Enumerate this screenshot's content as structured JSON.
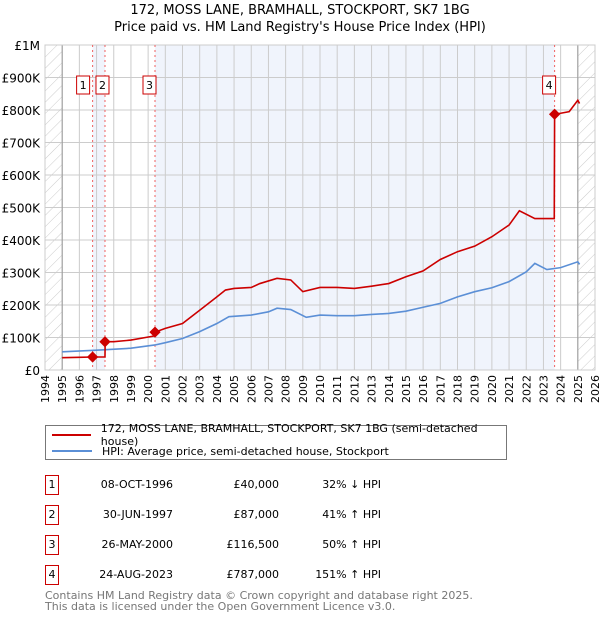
{
  "chart_data": {
    "type": "line",
    "title": "172, MOSS LANE, BRAMHALL, STOCKPORT, SK7 1BG",
    "subtitle": "Price paid vs. HM Land Registry's House Price Index (HPI)",
    "xlim": [
      1994,
      2026
    ],
    "ylim": [
      0,
      1000000
    ],
    "y_ticks": [
      {
        "v": 0,
        "label": "£0"
      },
      {
        "v": 100000,
        "label": "£100K"
      },
      {
        "v": 200000,
        "label": "£200K"
      },
      {
        "v": 300000,
        "label": "£300K"
      },
      {
        "v": 400000,
        "label": "£400K"
      },
      {
        "v": 500000,
        "label": "£500K"
      },
      {
        "v": 600000,
        "label": "£600K"
      },
      {
        "v": 700000,
        "label": "£700K"
      },
      {
        "v": 800000,
        "label": "£800K"
      },
      {
        "v": 900000,
        "label": "£900K"
      },
      {
        "v": 1000000,
        "label": "£1M"
      }
    ],
    "x_ticks": [
      "1994",
      "1995",
      "1996",
      "1997",
      "1998",
      "1999",
      "2000",
      "2001",
      "2002",
      "2003",
      "2004",
      "2005",
      "2006",
      "2007",
      "2008",
      "2009",
      "2010",
      "2011",
      "2012",
      "2013",
      "2014",
      "2015",
      "2016",
      "2017",
      "2018",
      "2019",
      "2020",
      "2021",
      "2022",
      "2023",
      "2024",
      "2025",
      "2026"
    ],
    "grid": true,
    "data_range": [
      1995,
      2025.1
    ],
    "series": [
      {
        "name": "172, MOSS LANE, BRAMHALL, STOCKPORT, SK7 1BG (semi-detached house)",
        "color": "#cc0000",
        "x": [
          1995,
          1996,
          1996.77,
          1997.49,
          1997.5,
          1998,
          1999,
          2000.39,
          2000.4,
          2001,
          2002,
          2003,
          2004,
          2004.5,
          2005,
          2006,
          2006.5,
          2007.5,
          2008.3,
          2009,
          2010,
          2011,
          2012,
          2013,
          2014,
          2015,
          2016,
          2017,
          2018,
          2019,
          2020,
          2021,
          2021.6,
          2022.5,
          2023.63,
          2023.65,
          2024,
          2024.5,
          2025,
          2025.1
        ],
        "y": [
          38000,
          39000,
          40000,
          40000,
          87000,
          87000,
          92000,
          105000,
          116500,
          128000,
          143000,
          184000,
          225000,
          246000,
          251000,
          254000,
          266000,
          282000,
          277000,
          241000,
          254000,
          254000,
          251000,
          258000,
          266000,
          287000,
          305000,
          340000,
          364000,
          381000,
          410000,
          446000,
          490000,
          466000,
          466000,
          787000,
          790000,
          795000,
          830000,
          820000
        ]
      },
      {
        "name": "HPI: Average price, semi-detached house, Stockport",
        "color": "#5b8fd6",
        "x": [
          1995,
          1997,
          1999,
          2000.4,
          2001,
          2002,
          2003,
          2004,
          2004.7,
          2006,
          2007,
          2007.5,
          2008.3,
          2009.2,
          2010,
          2011,
          2012,
          2013,
          2014,
          2015,
          2016,
          2017,
          2018,
          2019,
          2020,
          2021,
          2022,
          2022.5,
          2023.2,
          2024,
          2025,
          2025.1
        ],
        "y": [
          56000,
          61000,
          67000,
          77000,
          84000,
          97000,
          118000,
          143000,
          164000,
          169000,
          179000,
          190000,
          186000,
          162000,
          169000,
          167000,
          167000,
          171000,
          174000,
          181000,
          193000,
          205000,
          225000,
          241000,
          253000,
          272000,
          302000,
          328000,
          309000,
          315000,
          333000,
          325000
        ]
      }
    ],
    "sales": [
      {
        "n": "1",
        "x": 1996.77,
        "date": "08-OCT-1996",
        "price_value": 40000,
        "price": "£40,000",
        "hpi": "32% ↓ HPI"
      },
      {
        "n": "2",
        "x": 1997.49,
        "date": "30-JUN-1997",
        "price_value": 87000,
        "price": "£87,000",
        "hpi": "41% ↑ HPI"
      },
      {
        "n": "3",
        "x": 2000.4,
        "date": "26-MAY-2000",
        "price_value": 116500,
        "price": "£116,500",
        "hpi": "50% ↑ HPI"
      },
      {
        "n": "4",
        "x": 2023.65,
        "date": "24-AUG-2023",
        "price_value": 787000,
        "price": "£787,000",
        "hpi": "151% ↑ HPI"
      }
    ]
  },
  "footer": {
    "line1": "Contains HM Land Registry data © Crown copyright and database right 2025.",
    "line2": "This data is licensed under the Open Government Licence v3.0."
  }
}
